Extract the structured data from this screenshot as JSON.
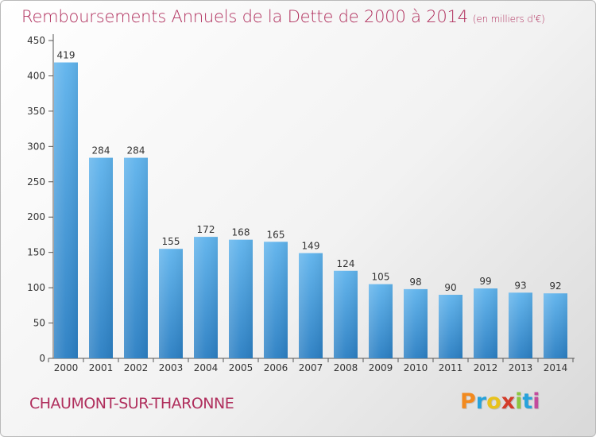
{
  "chart_data": {
    "type": "bar",
    "title": "Remboursements Annuels de la Dette de 2000 à 2014",
    "subtitle": "(en milliers d'€)",
    "categories": [
      "2000",
      "2001",
      "2002",
      "2003",
      "2004",
      "2005",
      "2006",
      "2007",
      "2008",
      "2009",
      "2010",
      "2011",
      "2012",
      "2013",
      "2014"
    ],
    "values": [
      419,
      284,
      284,
      155,
      172,
      168,
      165,
      149,
      124,
      105,
      98,
      90,
      99,
      93,
      92
    ],
    "ylim": [
      0,
      450
    ],
    "yticks": [
      0,
      50,
      100,
      150,
      200,
      250,
      300,
      350,
      400,
      450
    ],
    "grid": false,
    "xlabel": "",
    "ylabel": ""
  },
  "footer": {
    "commune": "CHAUMONT-SUR-THARONNE"
  },
  "logo": {
    "letters": [
      "P",
      "r",
      "o",
      "x",
      "i",
      "t",
      "i"
    ],
    "colors": [
      "#f28a1f",
      "#27a2db",
      "#e8c21c",
      "#d33c2a",
      "#8cc63e",
      "#27a2db",
      "#c34b9c"
    ]
  }
}
